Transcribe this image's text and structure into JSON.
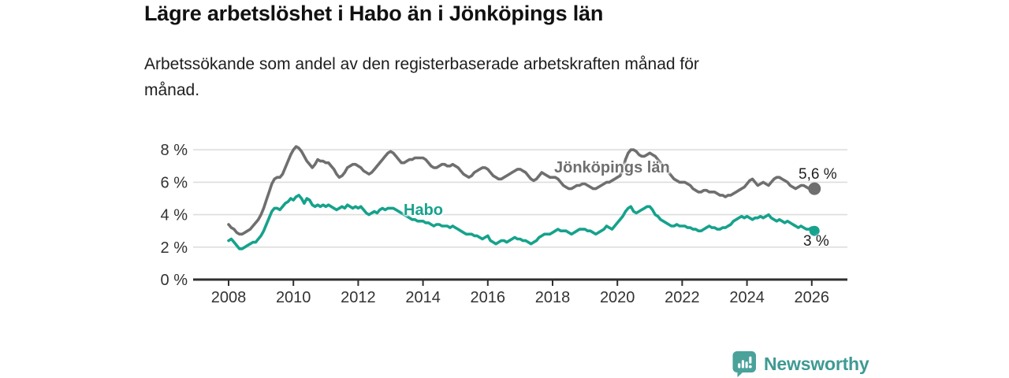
{
  "title": "Lägre arbetslöshet i Habo än i Jönköpings län",
  "subtitle": "Arbetssökande som andel av den registerbaserade arbetskraften månad för månad.",
  "branding": {
    "name": "Newsworthy",
    "logo_icon": "bar-chart-speech-bubble-icon",
    "logo_color": "#4AA29B",
    "text_color": "#3E9A93"
  },
  "chart_data": {
    "type": "line",
    "title": "Lägre arbetslöshet i Habo än i Jönköpings län",
    "subtitle": "Arbetssökande som andel av den registerbaserade arbetskraften månad för månad.",
    "xlabel": "",
    "ylabel": "",
    "x_start": "2008-01",
    "x_end": "2026-02",
    "x_frequency": "monthly",
    "x_tick_years": [
      2008,
      2010,
      2012,
      2014,
      2016,
      2018,
      2020,
      2022,
      2024,
      2026
    ],
    "y_ticks": [
      [
        0,
        "0 %"
      ],
      [
        2,
        "2 %"
      ],
      [
        4,
        "4 %"
      ],
      [
        6,
        "6 %"
      ],
      [
        8,
        "8 %"
      ]
    ],
    "ylim": [
      0,
      8.6
    ],
    "grid": "horizontal",
    "legend_position": "inline-labels",
    "colors": {
      "grid": "#DDDDDD",
      "axis": "#2F2F2F",
      "tick_text": "#333333"
    },
    "series": [
      {
        "name": "Jönköpings län",
        "color": "#6F6F6F",
        "end_label": "5,6 %",
        "end_value": 5.6,
        "values": [
          3.4,
          3.2,
          3.1,
          2.9,
          2.8,
          2.8,
          2.9,
          3.0,
          3.1,
          3.3,
          3.5,
          3.7,
          4.0,
          4.4,
          4.9,
          5.4,
          5.9,
          6.2,
          6.3,
          6.3,
          6.5,
          6.9,
          7.3,
          7.7,
          8.0,
          8.2,
          8.1,
          7.9,
          7.6,
          7.3,
          7.1,
          6.9,
          7.1,
          7.4,
          7.3,
          7.3,
          7.2,
          7.2,
          7.0,
          6.8,
          6.5,
          6.3,
          6.4,
          6.6,
          6.9,
          7.0,
          7.1,
          7.1,
          7.0,
          6.9,
          6.7,
          6.6,
          6.5,
          6.6,
          6.8,
          7.0,
          7.2,
          7.4,
          7.6,
          7.8,
          7.9,
          7.8,
          7.6,
          7.4,
          7.2,
          7.2,
          7.3,
          7.4,
          7.4,
          7.5,
          7.5,
          7.5,
          7.5,
          7.4,
          7.2,
          7.0,
          6.9,
          6.9,
          7.0,
          7.1,
          7.1,
          7.0,
          7.0,
          7.1,
          7.0,
          6.9,
          6.7,
          6.5,
          6.4,
          6.3,
          6.4,
          6.6,
          6.7,
          6.8,
          6.9,
          6.9,
          6.8,
          6.6,
          6.4,
          6.3,
          6.2,
          6.2,
          6.3,
          6.4,
          6.5,
          6.6,
          6.7,
          6.8,
          6.8,
          6.7,
          6.6,
          6.4,
          6.2,
          6.1,
          6.2,
          6.4,
          6.6,
          6.5,
          6.4,
          6.3,
          6.3,
          6.3,
          6.2,
          6.0,
          5.8,
          5.7,
          5.6,
          5.6,
          5.7,
          5.8,
          5.8,
          5.9,
          5.9,
          5.8,
          5.7,
          5.6,
          5.6,
          5.7,
          5.8,
          5.9,
          6.0,
          6.0,
          6.1,
          6.2,
          6.3,
          6.4,
          6.8,
          7.4,
          7.8,
          8.0,
          8.0,
          7.9,
          7.7,
          7.6,
          7.6,
          7.7,
          7.8,
          7.7,
          7.6,
          7.4,
          7.2,
          7.0,
          6.8,
          6.6,
          6.4,
          6.2,
          6.1,
          6.0,
          6.0,
          6.0,
          5.9,
          5.8,
          5.6,
          5.5,
          5.4,
          5.4,
          5.5,
          5.5,
          5.4,
          5.4,
          5.4,
          5.3,
          5.2,
          5.2,
          5.1,
          5.2,
          5.2,
          5.3,
          5.4,
          5.5,
          5.6,
          5.7,
          5.9,
          6.1,
          6.2,
          6.0,
          5.8,
          5.9,
          6.0,
          5.9,
          5.8,
          6.0,
          6.2,
          6.3,
          6.3,
          6.2,
          6.1,
          6.0,
          5.8,
          5.7,
          5.6,
          5.7,
          5.8,
          5.8,
          5.7,
          5.6,
          5.7,
          5.6
        ]
      },
      {
        "name": "Habo",
        "color": "#16A28C",
        "end_label": "3 %",
        "end_value": 3.0,
        "values": [
          2.4,
          2.5,
          2.3,
          2.1,
          1.9,
          1.9,
          2.0,
          2.1,
          2.2,
          2.3,
          2.3,
          2.5,
          2.7,
          3.0,
          3.4,
          3.8,
          4.2,
          4.4,
          4.4,
          4.3,
          4.5,
          4.7,
          4.8,
          5.0,
          4.9,
          5.1,
          5.2,
          5.0,
          4.7,
          5.0,
          4.9,
          4.6,
          4.5,
          4.6,
          4.5,
          4.6,
          4.5,
          4.6,
          4.5,
          4.4,
          4.3,
          4.4,
          4.5,
          4.4,
          4.6,
          4.5,
          4.4,
          4.5,
          4.4,
          4.5,
          4.3,
          4.1,
          4.0,
          4.1,
          4.2,
          4.1,
          4.3,
          4.4,
          4.3,
          4.4,
          4.4,
          4.4,
          4.3,
          4.2,
          4.1,
          4.0,
          3.9,
          3.8,
          3.7,
          3.7,
          3.6,
          3.6,
          3.6,
          3.5,
          3.5,
          3.4,
          3.3,
          3.4,
          3.4,
          3.3,
          3.3,
          3.3,
          3.2,
          3.3,
          3.2,
          3.1,
          3.0,
          2.9,
          2.8,
          2.8,
          2.8,
          2.7,
          2.7,
          2.6,
          2.5,
          2.6,
          2.7,
          2.4,
          2.3,
          2.2,
          2.3,
          2.4,
          2.4,
          2.3,
          2.4,
          2.5,
          2.6,
          2.5,
          2.5,
          2.4,
          2.4,
          2.3,
          2.2,
          2.3,
          2.4,
          2.6,
          2.7,
          2.8,
          2.8,
          2.8,
          2.9,
          3.0,
          3.1,
          3.0,
          3.0,
          3.0,
          2.9,
          2.8,
          2.9,
          3.0,
          3.1,
          3.1,
          3.1,
          3.0,
          3.0,
          2.9,
          2.8,
          2.9,
          3.0,
          3.1,
          3.3,
          3.2,
          3.1,
          3.3,
          3.5,
          3.7,
          3.9,
          4.2,
          4.4,
          4.5,
          4.2,
          4.1,
          4.2,
          4.3,
          4.4,
          4.5,
          4.5,
          4.3,
          4.0,
          3.9,
          3.7,
          3.6,
          3.5,
          3.4,
          3.3,
          3.3,
          3.4,
          3.3,
          3.3,
          3.3,
          3.2,
          3.2,
          3.1,
          3.1,
          3.0,
          3.0,
          3.1,
          3.2,
          3.3,
          3.2,
          3.2,
          3.1,
          3.1,
          3.2,
          3.2,
          3.3,
          3.4,
          3.6,
          3.7,
          3.8,
          3.9,
          3.8,
          3.9,
          3.8,
          3.7,
          3.8,
          3.8,
          3.9,
          3.8,
          3.9,
          4.0,
          3.8,
          3.7,
          3.6,
          3.7,
          3.6,
          3.5,
          3.6,
          3.5,
          3.4,
          3.3,
          3.2,
          3.3,
          3.2,
          3.1,
          3.1,
          3.2,
          3.0
        ]
      }
    ]
  }
}
